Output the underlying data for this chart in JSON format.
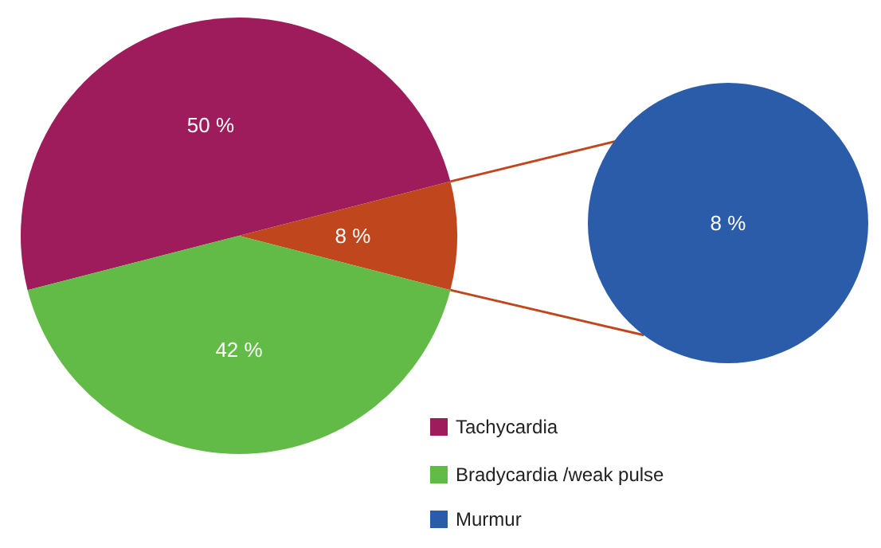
{
  "chart_data": [
    {
      "type": "pie",
      "categories": [
        "Tachycardia",
        null,
        "Bradycardia /weak pulse"
      ],
      "values": [
        50,
        8,
        42
      ],
      "colors": [
        "#9e1b5c",
        "#c0461e",
        "#63bb47"
      ],
      "value_labels": [
        "50 %",
        "8 %",
        "42 %"
      ],
      "legend": "bottom"
    },
    {
      "type": "pie",
      "categories": [
        "Murmur"
      ],
      "values": [
        8
      ],
      "colors": [
        "#2a5caa"
      ],
      "value_labels": [
        "8 %"
      ],
      "legend": "bottom"
    }
  ]
}
